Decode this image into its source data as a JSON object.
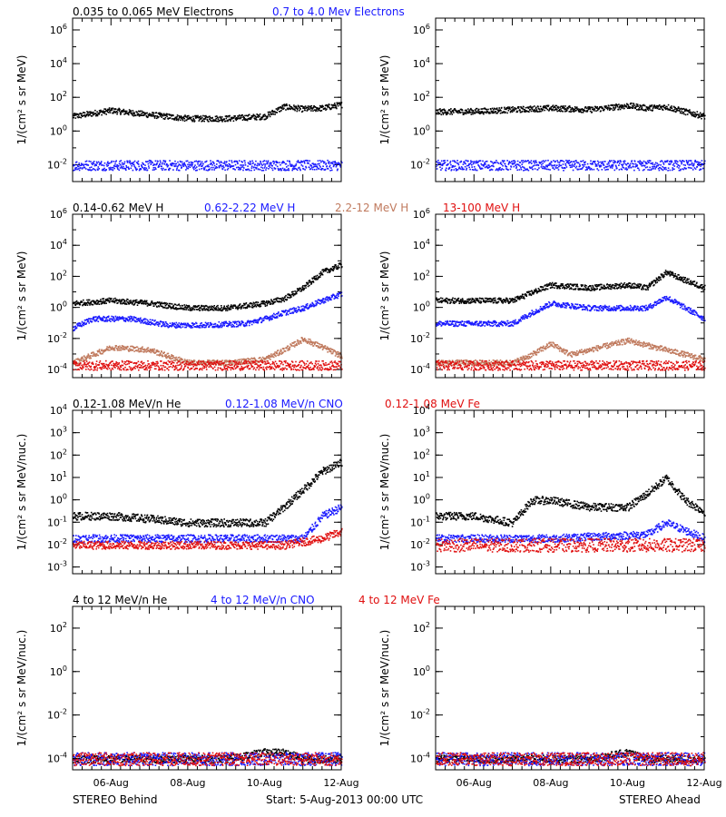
{
  "colors": {
    "black": "#000000",
    "blue": "#1a1aff",
    "tan": "#c07a5e",
    "red": "#e01010"
  },
  "footer": {
    "left": "STEREO Behind",
    "center": "Start:  5-Aug-2013 00:00 UTC",
    "right": "STEREO Ahead"
  },
  "x_tick_labels": [
    "06-Aug",
    "08-Aug",
    "10-Aug",
    "12-Aug"
  ],
  "rows": [
    {
      "ylabel_html": "1/(cm² s sr MeV)",
      "ylabel": "1/(cm² s sr MeV)",
      "titles": [
        {
          "text": "0.035 to 0.065 MeV Electrons",
          "color": "black"
        },
        {
          "text": "0.7 to 4.0 Mev Electrons",
          "color": "blue"
        }
      ],
      "yticks": [
        {
          "base": "10",
          "exp": "6"
        },
        {
          "base": "10",
          "exp": "4"
        },
        {
          "base": "10",
          "exp": "2"
        },
        {
          "base": "10",
          "exp": "0"
        },
        {
          "base": "10",
          "exp": "-2"
        }
      ]
    },
    {
      "ylabel": "1/(cm² s sr MeV)",
      "titles": [
        {
          "text": "0.14-0.62 MeV H",
          "color": "black"
        },
        {
          "text": "0.62-2.22 MeV H",
          "color": "blue"
        },
        {
          "text": "2.2-12 MeV H",
          "color": "tan"
        },
        {
          "text": "13-100 MeV H",
          "color": "red"
        }
      ],
      "yticks": [
        {
          "base": "10",
          "exp": "6"
        },
        {
          "base": "10",
          "exp": "4"
        },
        {
          "base": "10",
          "exp": "2"
        },
        {
          "base": "10",
          "exp": "0"
        },
        {
          "base": "10",
          "exp": "-2"
        },
        {
          "base": "10",
          "exp": "-4"
        }
      ]
    },
    {
      "ylabel": "1/(cm² s sr MeV/nuc.)",
      "titles": [
        {
          "text": "0.12-1.08 MeV/n He",
          "color": "black"
        },
        {
          "text": "0.12-1.08 MeV/n CNO",
          "color": "blue"
        },
        {
          "text": "0.12-1.08 MeV Fe",
          "color": "red"
        }
      ],
      "yticks": [
        {
          "base": "10",
          "exp": "4"
        },
        {
          "base": "10",
          "exp": "3"
        },
        {
          "base": "10",
          "exp": "2"
        },
        {
          "base": "10",
          "exp": "1"
        },
        {
          "base": "10",
          "exp": "0"
        },
        {
          "base": "10",
          "exp": "-1"
        },
        {
          "base": "10",
          "exp": "-2"
        },
        {
          "base": "10",
          "exp": "-3"
        }
      ]
    },
    {
      "ylabel": "1/(cm² s sr MeV/nuc.)",
      "titles": [
        {
          "text": "4 to 12 MeV/n He",
          "color": "black"
        },
        {
          "text": "4 to 12 MeV/n CNO",
          "color": "blue"
        },
        {
          "text": "4 to 12 MeV Fe",
          "color": "red"
        }
      ],
      "yticks": [
        {
          "base": "10",
          "exp": "2"
        },
        {
          "base": "10",
          "exp": "0"
        },
        {
          "base": "10",
          "exp": "-2"
        },
        {
          "base": "10",
          "exp": "-4"
        }
      ]
    }
  ],
  "chart_data": [
    {
      "type": "scatter",
      "panel": "STEREO Behind",
      "title": "0.035 to 0.065 MeV Electrons / 0.7 to 4.0 Mev Electrons",
      "xlabel": "",
      "ylabel": "1/(cm² s sr MeV)",
      "yscale": "log",
      "ylim": [
        0.001,
        5000000
      ],
      "xlim_days": [
        5.0,
        12.0
      ],
      "series": [
        {
          "name": "0.035 to 0.065 MeV Electrons",
          "color": "black",
          "x": [
            5.0,
            6.0,
            7.0,
            8.0,
            9.0,
            10.0,
            10.5,
            11.0,
            11.5,
            12.0
          ],
          "y": [
            8,
            18,
            10,
            6,
            6,
            8,
            30,
            22,
            25,
            40
          ]
        },
        {
          "name": "0.7 to 4.0 Mev Electrons",
          "color": "blue",
          "x": [
            5.0,
            8.0,
            12.0
          ],
          "y": [
            0.01,
            0.01,
            0.01
          ]
        }
      ]
    },
    {
      "type": "scatter",
      "panel": "STEREO Ahead",
      "ylabel": "1/(cm² s sr MeV)",
      "yscale": "log",
      "ylim": [
        0.001,
        5000000
      ],
      "series": [
        {
          "name": "0.035 to 0.065 MeV Electrons",
          "color": "black",
          "x": [
            5.0,
            6.0,
            7.0,
            8.0,
            9.0,
            10.0,
            10.5,
            11.0,
            11.5,
            12.0
          ],
          "y": [
            15,
            16,
            20,
            25,
            20,
            35,
            25,
            30,
            15,
            8
          ]
        },
        {
          "name": "0.7 to 4.0 Mev Electrons",
          "color": "blue",
          "x": [
            5.0,
            8.0,
            12.0
          ],
          "y": [
            0.01,
            0.01,
            0.01
          ]
        }
      ]
    },
    {
      "type": "scatter",
      "panel": "STEREO Behind",
      "ylabel": "1/(cm² s sr MeV)",
      "yscale": "log",
      "ylim": [
        3e-05,
        1000000
      ],
      "series": [
        {
          "name": "0.14-0.62 MeV H",
          "color": "black",
          "x": [
            5.0,
            6.0,
            7.0,
            8.0,
            9.0,
            10.0,
            10.5,
            11.0,
            11.5,
            12.0
          ],
          "y": [
            2,
            3,
            2,
            1,
            1,
            2,
            4,
            20,
            200,
            600
          ]
        },
        {
          "name": "0.62-2.22 MeV H",
          "color": "blue",
          "x": [
            5.0,
            5.5,
            6.5,
            7.5,
            8.5,
            9.5,
            10.0,
            10.5,
            11.0,
            11.5,
            12.0
          ],
          "y": [
            0.05,
            0.2,
            0.2,
            0.08,
            0.08,
            0.1,
            0.2,
            0.5,
            1,
            3,
            8
          ]
        },
        {
          "name": "2.2-12 MeV H",
          "color": "tan",
          "x": [
            5.0,
            6.0,
            7.0,
            8.0,
            9.0,
            10.0,
            10.5,
            11.0,
            11.5,
            12.0
          ],
          "y": [
            0.0003,
            0.003,
            0.002,
            0.0003,
            0.0003,
            0.0005,
            0.002,
            0.01,
            0.003,
            0.0008
          ]
        },
        {
          "name": "13-100 MeV H",
          "color": "red",
          "x": [
            5.0,
            12.0
          ],
          "y": [
            0.0002,
            0.0002
          ]
        }
      ]
    },
    {
      "type": "scatter",
      "panel": "STEREO Ahead",
      "ylabel": "1/(cm² s sr MeV)",
      "yscale": "log",
      "ylim": [
        3e-05,
        1000000
      ],
      "series": [
        {
          "name": "0.14-0.62 MeV H",
          "color": "black",
          "x": [
            5.0,
            6.0,
            7.0,
            7.5,
            8.0,
            9.0,
            10.0,
            10.5,
            11.0,
            11.5,
            12.0
          ],
          "y": [
            3,
            3,
            3,
            10,
            30,
            20,
            30,
            20,
            200,
            60,
            20
          ]
        },
        {
          "name": "0.62-2.22 MeV H",
          "color": "blue",
          "x": [
            5.0,
            6.0,
            7.0,
            7.5,
            8.0,
            9.0,
            10.0,
            10.5,
            11.0,
            11.5,
            12.0
          ],
          "y": [
            0.1,
            0.1,
            0.1,
            0.5,
            2,
            1,
            1,
            1,
            5,
            1,
            0.2
          ]
        },
        {
          "name": "2.2-12 MeV H",
          "color": "tan",
          "x": [
            5.0,
            6.0,
            7.0,
            7.5,
            8.0,
            8.5,
            9.0,
            10.0,
            11.0,
            12.0
          ],
          "y": [
            0.0003,
            0.0003,
            0.0003,
            0.001,
            0.005,
            0.001,
            0.002,
            0.008,
            0.002,
            0.0005
          ]
        },
        {
          "name": "13-100 MeV H",
          "color": "red",
          "x": [
            5.0,
            12.0
          ],
          "y": [
            0.0002,
            0.0002
          ]
        }
      ]
    },
    {
      "type": "scatter",
      "panel": "STEREO Behind",
      "ylabel": "1/(cm² s sr MeV/nuc.)",
      "yscale": "log",
      "ylim": [
        0.0005,
        10000
      ],
      "series": [
        {
          "name": "0.12-1.08 MeV/n He",
          "color": "black",
          "x": [
            5.0,
            6.0,
            7.0,
            8.0,
            9.0,
            10.0,
            10.5,
            11.0,
            11.5,
            12.0
          ],
          "y": [
            0.2,
            0.2,
            0.15,
            0.1,
            0.1,
            0.1,
            0.5,
            3,
            20,
            50
          ]
        },
        {
          "name": "0.12-1.08 MeV/n CNO",
          "color": "blue",
          "x": [
            5.0,
            10.5,
            11.0,
            11.5,
            12.0
          ],
          "y": [
            0.02,
            0.02,
            0.02,
            0.2,
            0.5
          ]
        },
        {
          "name": "0.12-1.08 MeV Fe",
          "color": "red",
          "x": [
            5.0,
            10.5,
            11.5,
            12.0
          ],
          "y": [
            0.01,
            0.01,
            0.02,
            0.04
          ]
        }
      ]
    },
    {
      "type": "scatter",
      "panel": "STEREO Ahead",
      "ylabel": "1/(cm² s sr MeV/nuc.)",
      "yscale": "log",
      "ylim": [
        0.0005,
        10000
      ],
      "series": [
        {
          "name": "0.12-1.08 MeV/n He",
          "color": "black",
          "x": [
            5.0,
            6.0,
            7.0,
            7.5,
            8.0,
            9.0,
            10.0,
            10.5,
            11.0,
            11.5,
            12.0
          ],
          "y": [
            0.2,
            0.2,
            0.1,
            1,
            1,
            0.5,
            0.5,
            2,
            10,
            1,
            0.3
          ]
        },
        {
          "name": "0.12-1.08 MeV/n CNO",
          "color": "blue",
          "x": [
            5.0,
            8.0,
            10.5,
            11.0,
            12.0
          ],
          "y": [
            0.02,
            0.02,
            0.03,
            0.1,
            0.02
          ]
        },
        {
          "name": "0.12-1.08 MeV Fe",
          "color": "red",
          "x": [
            5.0,
            12.0
          ],
          "y": [
            0.01,
            0.01
          ]
        }
      ]
    },
    {
      "type": "scatter",
      "panel": "STEREO Behind",
      "ylabel": "1/(cm² s sr MeV/nuc.)",
      "yscale": "log",
      "ylim": [
        3e-05,
        1000
      ],
      "series": [
        {
          "name": "4 to 12 MeV/n He",
          "color": "black",
          "x": [
            5.0,
            9.0,
            10.0,
            10.5,
            11.0,
            11.5
          ],
          "y": [
            0.0001,
            0.0001,
            0.0002,
            0.0002,
            0.0001,
            0.0001
          ]
        },
        {
          "name": "4 to 12 MeV/n CNO",
          "color": "blue",
          "x": [
            5.0,
            12.0
          ],
          "y": [
            0.0001,
            0.0001
          ]
        },
        {
          "name": "4 to 12 MeV Fe",
          "color": "red",
          "x": [
            5.0,
            12.0
          ],
          "y": [
            0.0001,
            0.0001
          ]
        }
      ]
    },
    {
      "type": "scatter",
      "panel": "STEREO Ahead",
      "ylabel": "1/(cm² s sr MeV/nuc.)",
      "yscale": "log",
      "ylim": [
        3e-05,
        1000
      ],
      "series": [
        {
          "name": "4 to 12 MeV/n He",
          "color": "black",
          "x": [
            5.0,
            7.0,
            9.0,
            10.0,
            10.5,
            11.0
          ],
          "y": [
            0.0001,
            0.0001,
            0.0001,
            0.0002,
            0.0001,
            0.0001
          ]
        },
        {
          "name": "4 to 12 MeV/n CNO",
          "color": "blue",
          "x": [
            5.0,
            12.0
          ],
          "y": [
            0.0001,
            0.0001
          ]
        },
        {
          "name": "4 to 12 MeV Fe",
          "color": "red",
          "x": [
            5.0,
            12.0
          ],
          "y": [
            0.0001,
            0.0001
          ]
        }
      ]
    }
  ]
}
